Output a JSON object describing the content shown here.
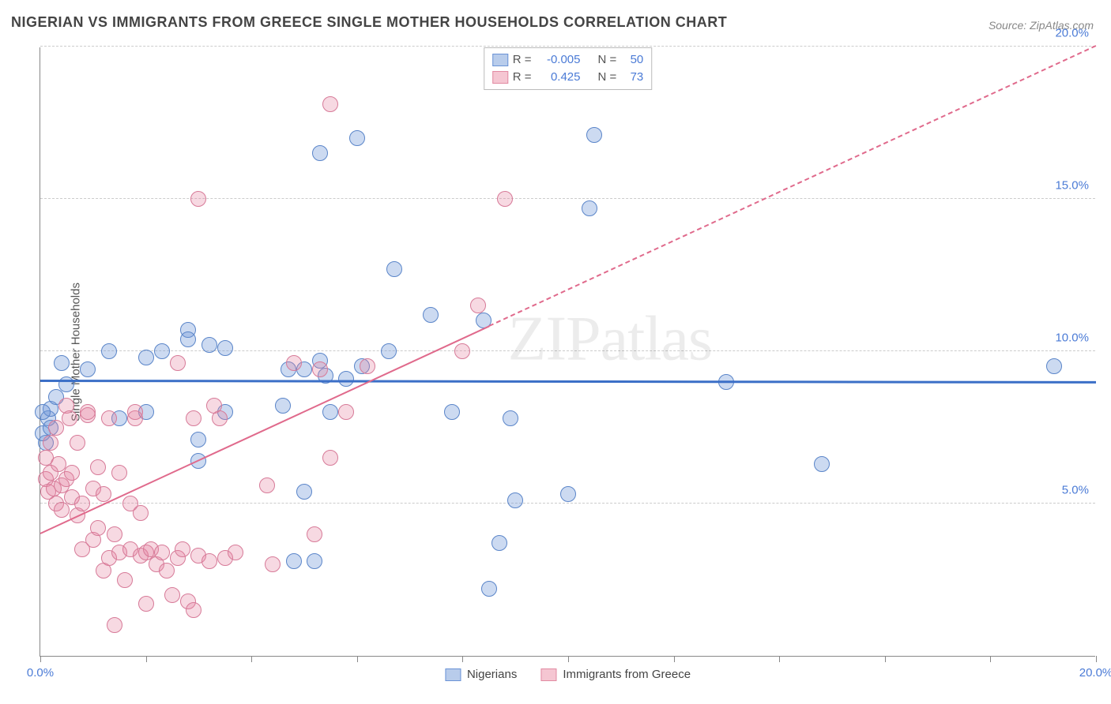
{
  "title": "NIGERIAN VS IMMIGRANTS FROM GREECE SINGLE MOTHER HOUSEHOLDS CORRELATION CHART",
  "source": "Source: ZipAtlas.com",
  "ylabel": "Single Mother Households",
  "watermark": "ZIPatlas",
  "chart": {
    "type": "scatter",
    "background_color": "#ffffff",
    "grid_color": "#cccccc",
    "axis_color": "#888888",
    "tick_label_color": "#4b7bd6",
    "xlim": [
      0,
      20
    ],
    "ylim": [
      0,
      20
    ],
    "yticks": [
      5,
      10,
      15,
      20
    ],
    "ytick_labels": [
      "5.0%",
      "10.0%",
      "15.0%",
      "20.0%"
    ],
    "xticks": [
      0,
      2,
      4,
      6,
      8,
      10,
      12,
      14,
      16,
      18,
      20
    ],
    "xtick_labels_shown": {
      "0": "0.0%",
      "20": "20.0%"
    },
    "marker_opacity": 0.45,
    "marker_radius": 10,
    "series": [
      {
        "name": "Nigerians",
        "swatch_fill": "#b8cceb",
        "swatch_border": "#6a93d6",
        "point_fill": "rgba(110,150,215,0.35)",
        "point_border": "#5a85c9",
        "R": "-0.005",
        "N": "50",
        "trend": {
          "y1": 9.0,
          "y2": 8.95,
          "solid_until_x": 20,
          "color": "#3b6fc7",
          "width": 3
        },
        "points": [
          [
            0.1,
            7.0
          ],
          [
            0.15,
            7.8
          ],
          [
            0.2,
            8.1
          ],
          [
            0.3,
            8.5
          ],
          [
            0.05,
            7.3
          ],
          [
            0.4,
            9.6
          ],
          [
            0.5,
            8.9
          ],
          [
            0.9,
            9.4
          ],
          [
            1.3,
            10.0
          ],
          [
            1.5,
            7.8
          ],
          [
            2.0,
            9.8
          ],
          [
            2.0,
            8.0
          ],
          [
            2.3,
            10.0
          ],
          [
            2.8,
            10.7
          ],
          [
            2.8,
            10.4
          ],
          [
            3.0,
            7.1
          ],
          [
            3.0,
            6.4
          ],
          [
            3.2,
            10.2
          ],
          [
            3.5,
            8.0
          ],
          [
            3.5,
            10.1
          ],
          [
            4.6,
            8.2
          ],
          [
            4.7,
            9.4
          ],
          [
            4.8,
            3.1
          ],
          [
            5.0,
            5.4
          ],
          [
            5.0,
            9.4
          ],
          [
            5.2,
            3.1
          ],
          [
            5.3,
            16.5
          ],
          [
            5.3,
            9.7
          ],
          [
            5.4,
            9.2
          ],
          [
            5.5,
            8.0
          ],
          [
            5.8,
            9.1
          ],
          [
            6.0,
            17.0
          ],
          [
            6.1,
            9.5
          ],
          [
            6.6,
            10.0
          ],
          [
            6.7,
            12.7
          ],
          [
            7.4,
            11.2
          ],
          [
            7.8,
            8.0
          ],
          [
            8.4,
            11.0
          ],
          [
            8.5,
            2.2
          ],
          [
            8.7,
            3.7
          ],
          [
            8.9,
            7.8
          ],
          [
            9.0,
            5.1
          ],
          [
            10.0,
            5.3
          ],
          [
            10.4,
            14.7
          ],
          [
            10.5,
            17.1
          ],
          [
            13.0,
            9.0
          ],
          [
            14.8,
            6.3
          ],
          [
            19.2,
            9.5
          ],
          [
            0.05,
            8.0
          ],
          [
            0.2,
            7.5
          ]
        ]
      },
      {
        "name": "Immigrants from Greece",
        "swatch_fill": "#f5c6d2",
        "swatch_border": "#e28aa2",
        "point_fill": "rgba(230,130,160,0.30)",
        "point_border": "#d77a98",
        "R": "0.425",
        "N": "73",
        "trend": {
          "y1": 4.0,
          "y2": 20.0,
          "solid_until_x": 8.5,
          "dashed_after": true,
          "color": "#e06a8c",
          "width": 2
        },
        "points": [
          [
            0.1,
            5.8
          ],
          [
            0.1,
            6.5
          ],
          [
            0.15,
            5.4
          ],
          [
            0.2,
            7.0
          ],
          [
            0.2,
            6.0
          ],
          [
            0.25,
            5.5
          ],
          [
            0.3,
            7.5
          ],
          [
            0.3,
            5.0
          ],
          [
            0.35,
            6.3
          ],
          [
            0.4,
            4.8
          ],
          [
            0.4,
            5.6
          ],
          [
            0.5,
            5.8
          ],
          [
            0.5,
            8.2
          ],
          [
            0.55,
            7.8
          ],
          [
            0.6,
            5.2
          ],
          [
            0.6,
            6.0
          ],
          [
            0.7,
            7.0
          ],
          [
            0.7,
            4.6
          ],
          [
            0.8,
            3.5
          ],
          [
            0.8,
            5.0
          ],
          [
            0.9,
            7.9
          ],
          [
            0.9,
            8.0
          ],
          [
            1.0,
            3.8
          ],
          [
            1.0,
            5.5
          ],
          [
            1.1,
            4.2
          ],
          [
            1.1,
            6.2
          ],
          [
            1.2,
            2.8
          ],
          [
            1.2,
            5.3
          ],
          [
            1.3,
            3.2
          ],
          [
            1.3,
            7.8
          ],
          [
            1.4,
            4.0
          ],
          [
            1.4,
            1.0
          ],
          [
            1.5,
            3.4
          ],
          [
            1.5,
            6.0
          ],
          [
            1.6,
            2.5
          ],
          [
            1.7,
            3.5
          ],
          [
            1.7,
            5.0
          ],
          [
            1.8,
            7.8
          ],
          [
            1.8,
            8.0
          ],
          [
            1.9,
            3.3
          ],
          [
            1.9,
            4.7
          ],
          [
            2.0,
            3.4
          ],
          [
            2.0,
            1.7
          ],
          [
            2.1,
            3.5
          ],
          [
            2.2,
            3.0
          ],
          [
            2.3,
            3.4
          ],
          [
            2.4,
            2.8
          ],
          [
            2.5,
            2.0
          ],
          [
            2.6,
            3.2
          ],
          [
            2.6,
            9.6
          ],
          [
            2.7,
            3.5
          ],
          [
            2.8,
            1.8
          ],
          [
            2.9,
            7.8
          ],
          [
            2.9,
            1.5
          ],
          [
            3.0,
            15.0
          ],
          [
            3.0,
            3.3
          ],
          [
            3.2,
            3.1
          ],
          [
            3.3,
            8.2
          ],
          [
            3.4,
            7.8
          ],
          [
            3.5,
            3.2
          ],
          [
            3.7,
            3.4
          ],
          [
            4.3,
            5.6
          ],
          [
            4.4,
            3.0
          ],
          [
            4.8,
            9.6
          ],
          [
            5.2,
            4.0
          ],
          [
            5.3,
            9.4
          ],
          [
            5.5,
            18.1
          ],
          [
            5.5,
            6.5
          ],
          [
            5.8,
            8.0
          ],
          [
            6.2,
            9.5
          ],
          [
            8.0,
            10.0
          ],
          [
            8.8,
            15.0
          ],
          [
            8.3,
            11.5
          ]
        ]
      }
    ],
    "legend_top": {
      "R_color": "#4b7bd6",
      "N_color": "#4b7bd6",
      "label_R": "R =",
      "label_N": "N ="
    },
    "legend_bottom_labels": [
      "Nigerians",
      "Immigrants from Greece"
    ]
  }
}
